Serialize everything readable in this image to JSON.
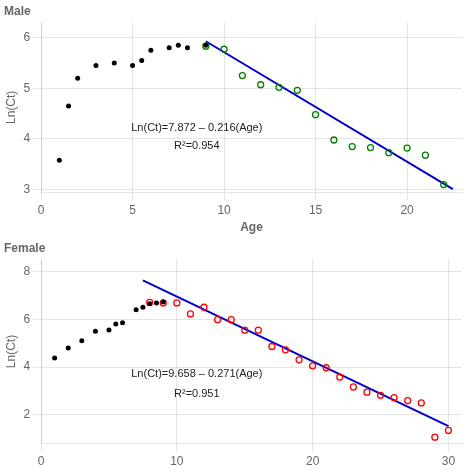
{
  "chart_data": [
    {
      "type": "scatter",
      "title": "Male",
      "xlabel": "Age",
      "ylabel": "Ln(Ct)",
      "series": [
        {
          "type": "scatter",
          "color": "#000000",
          "marker": "filled_circle",
          "x": [
            1,
            1.5,
            2,
            3,
            4,
            5,
            5.5,
            6,
            7,
            7.5,
            8,
            9
          ],
          "values": [
            3.58,
            4.65,
            5.2,
            5.45,
            5.5,
            5.45,
            5.55,
            5.75,
            5.8,
            5.85,
            5.8,
            5.85
          ]
        },
        {
          "type": "scatter",
          "color": "#008000",
          "marker": "open_circle",
          "x": [
            9,
            10,
            11,
            12,
            13,
            14,
            15,
            16,
            17,
            18,
            19,
            20,
            21,
            22
          ],
          "values": [
            5.83,
            5.77,
            5.25,
            5.07,
            5.02,
            4.96,
            4.48,
            3.98,
            3.85,
            3.83,
            3.73,
            3.82,
            3.68,
            3.1
          ]
        },
        {
          "type": "line",
          "color": "#0000cc",
          "line_style": "solid",
          "x": [
            9.0,
            22.5
          ],
          "values": [
            5.928,
            3.012
          ]
        }
      ],
      "annotations": [
        "Ln(Ct)=7.872 – 0.216(Age)",
        "R²=0.954"
      ],
      "xlim": [
        0,
        23
      ],
      "ylim": [
        2.95,
        6.3
      ],
      "xticks": [
        0,
        5,
        10,
        15,
        20
      ],
      "yticks": [
        3,
        4,
        5,
        6
      ],
      "grid": true
    },
    {
      "type": "scatter",
      "title": "Female",
      "ylabel": "Ln(Ct)",
      "series": [
        {
          "type": "scatter",
          "color": "#000000",
          "marker": "filled_circle",
          "x": [
            1,
            2,
            3,
            4,
            5,
            5.5,
            6,
            7,
            7.5,
            8,
            8.5,
            9
          ],
          "values": [
            4.38,
            4.8,
            5.1,
            5.5,
            5.55,
            5.8,
            5.85,
            6.4,
            6.5,
            6.65,
            6.68,
            6.72
          ]
        },
        {
          "type": "scatter",
          "color": "#ff0000",
          "marker": "open_circle",
          "x": [
            8,
            9,
            10,
            11,
            12,
            13,
            14,
            15,
            16,
            17,
            18,
            19,
            20,
            21,
            22,
            23,
            24,
            25,
            26,
            27,
            28,
            29,
            30
          ],
          "values": [
            6.7,
            6.68,
            6.68,
            6.22,
            6.5,
            5.98,
            5.98,
            5.54,
            5.54,
            4.86,
            4.72,
            4.3,
            4.05,
            3.97,
            3.58,
            3.17,
            2.95,
            2.82,
            2.72,
            2.6,
            2.5,
            1.07,
            1.35
          ]
        },
        {
          "type": "line",
          "color": "#0000cc",
          "line_style": "solid",
          "x": [
            7.5,
            30.0
          ],
          "values": [
            7.6255,
            1.528
          ]
        }
      ],
      "annotations": [
        "Ln(Ct)=9.658 – 0.271(Age)",
        "R²=0.951"
      ],
      "xlim": [
        0,
        31
      ],
      "ylim": [
        0.8,
        8.5
      ],
      "xticks": [
        0,
        10,
        20,
        30
      ],
      "yticks": [
        2,
        4,
        6,
        8
      ],
      "grid": true
    }
  ]
}
